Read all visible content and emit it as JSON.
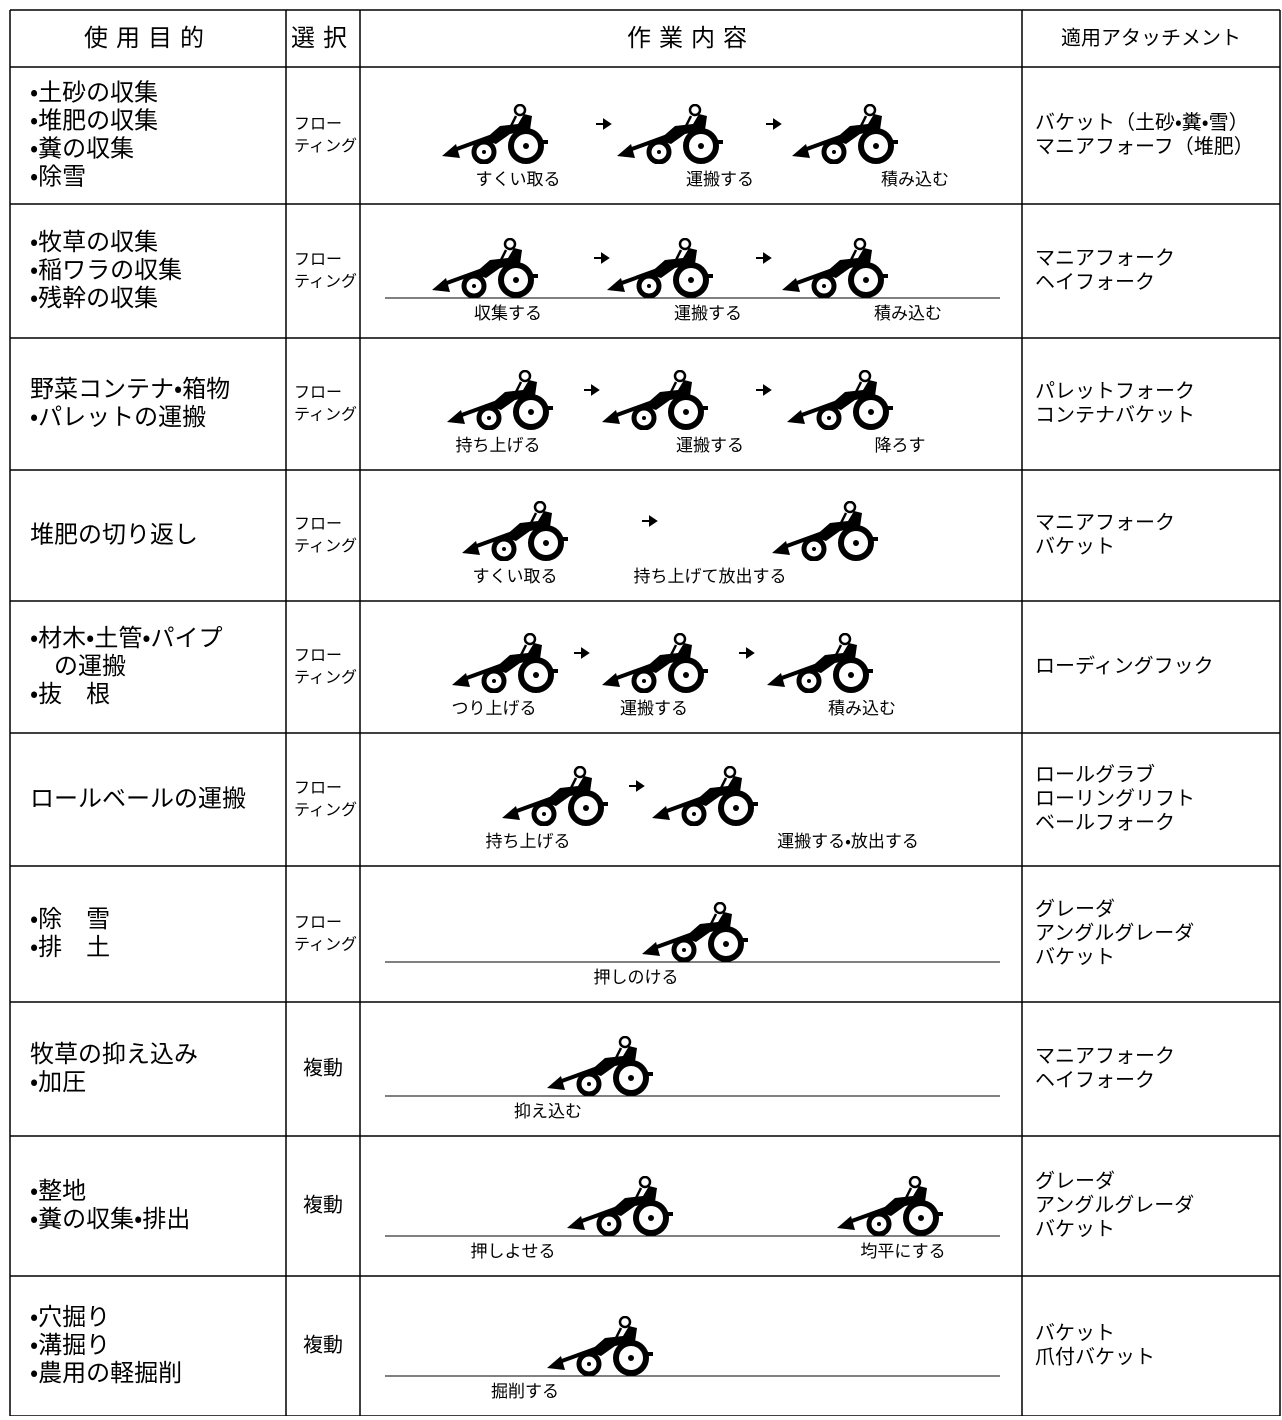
{
  "header": [
    "使用目的",
    "選択",
    "作業内容",
    "適用アタッチメント"
  ],
  "rows": [
    {
      "purpose": [
        "・土砂の収集",
        "・堆肥の収集",
        "・糞の収集",
        "・除雪"
      ],
      "selection": [
        "フロー",
        "ティング"
      ],
      "steps": [
        "すくい取る",
        "運搬する",
        "積み込む"
      ],
      "attachments": [
        "バケット（土砂・糞・雪）",
        "マニアフォーフ（堆肥）"
      ]
    },
    {
      "purpose": [
        "・牧草の収集",
        "・稲ワラの収集",
        "・残幹の収集"
      ],
      "selection": [
        "フロー",
        "ティング"
      ],
      "steps": [
        "収集する",
        "運搬する",
        "積み込む"
      ],
      "attachments": [
        "マニアフォーク",
        "ヘイフォーク"
      ]
    },
    {
      "purpose": [
        "野菜コンテナ・箱物",
        "・パレットの運搬"
      ],
      "selection": [
        "フロー",
        "ティング"
      ],
      "steps": [
        "持ち上げる",
        "運搬する",
        "降ろす"
      ],
      "attachments": [
        "パレットフォーク",
        "コンテナバケット"
      ]
    },
    {
      "purpose": [
        "堆肥の切り返し"
      ],
      "selection": [
        "フロー",
        "ティング"
      ],
      "steps": [
        "すくい取る",
        "持ち上げて放出する"
      ],
      "attachments": [
        "マニアフォーク",
        "バケット"
      ]
    },
    {
      "purpose": [
        "・材木・土管・パイプ",
        "　の運搬",
        "・抜　根"
      ],
      "selection": [
        "フロー",
        "ティング"
      ],
      "steps": [
        "つり上げる",
        "運搬する",
        "積み込む"
      ],
      "attachments": [
        "ローディングフック"
      ]
    },
    {
      "purpose": [
        "ロールベールの運搬"
      ],
      "selection": [
        "フロー",
        "ティング"
      ],
      "steps": [
        "持ち上げる",
        "運搬する・放出する"
      ],
      "attachments": [
        "ロールグラブ",
        "ローリングリフト",
        "ベールフォーク"
      ]
    },
    {
      "purpose": [
        "・除　雪",
        "・排　土"
      ],
      "selection": [
        "フロー",
        "ティング"
      ],
      "steps": [
        "押しのける"
      ],
      "attachments": [
        "グレーダ",
        "アングルグレーダ",
        "バケット"
      ]
    },
    {
      "purpose": [
        "牧草の抑え込み",
        "・加圧"
      ],
      "selection": [
        "複動"
      ],
      "steps": [
        "抑え込む"
      ],
      "attachments": [
        "マニアフォーク",
        "ヘイフォーク"
      ]
    },
    {
      "purpose": [
        "・整地",
        "・糞の収集・排出"
      ],
      "selection": [
        "複動"
      ],
      "steps": [
        "押しよせる",
        "均平にする"
      ],
      "attachments": [
        "グレーダ",
        "アングルグレーダ",
        "バケット"
      ]
    },
    {
      "purpose": [
        "・穴掘り",
        "・溝掘り",
        "・農用の軽掘削"
      ],
      "selection": [
        "複動"
      ],
      "steps": [
        "掘削する"
      ],
      "attachments": [
        "バケット",
        "爪付バケット"
      ]
    }
  ]
}
